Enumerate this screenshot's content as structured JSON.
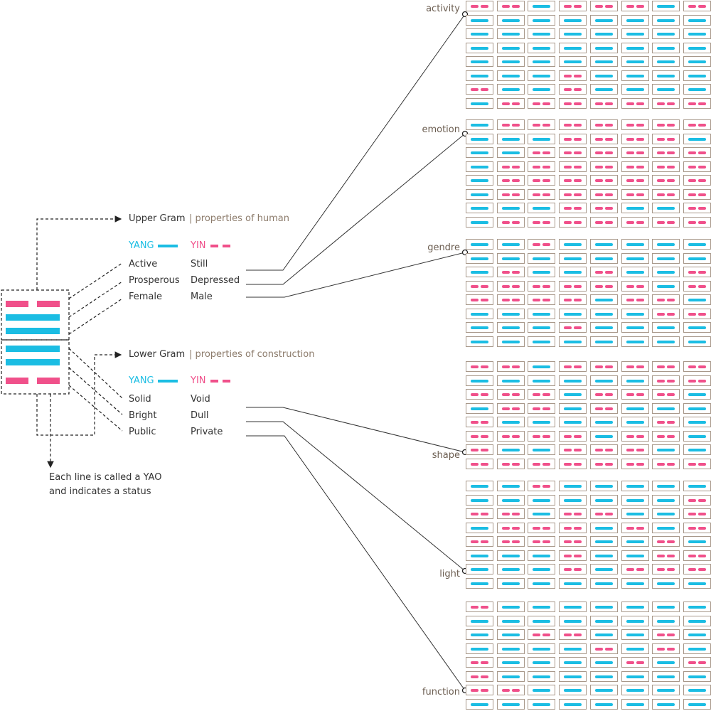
{
  "colors": {
    "yang": "#1bbde3",
    "yin": "#f0508a",
    "line": "#333333"
  },
  "hexagram": [
    "yin",
    "yang",
    "yang",
    "yang",
    "yang",
    "yin"
  ],
  "upper": {
    "title": "Upper Gram",
    "subtitle": "| properties of human",
    "yang_label": "YANG",
    "yin_label": "YIN",
    "pairs": [
      {
        "yang": "Active",
        "yin": "Still"
      },
      {
        "yang": "Prosperous",
        "yin": "Depressed"
      },
      {
        "yang": "Female",
        "yin": "Male"
      }
    ]
  },
  "lower": {
    "title": "Lower Gram",
    "subtitle": "| properties of construction",
    "yang_label": "YANG",
    "yin_label": "YIN",
    "pairs": [
      {
        "yang": "Solid",
        "yin": "Void"
      },
      {
        "yang": "Bright",
        "yin": "Dull"
      },
      {
        "yang": "Public",
        "yin": "Private"
      }
    ]
  },
  "note": {
    "line1": "Each line is called a YAO",
    "line2": "and indicates a status"
  },
  "grids": [
    {
      "label": "activity",
      "rows": [
        "00100010",
        "11111111",
        "11111111",
        "11111111",
        "11111111",
        "11101111",
        "01101111",
        "10000000"
      ]
    },
    {
      "label": "emotion",
      "rows": [
        "10000000",
        "11100001",
        "11000000",
        "10000000",
        "10000000",
        "10000000",
        "11100110",
        "10000000"
      ]
    },
    {
      "label": "gendre",
      "rows": [
        "11011111",
        "11111111",
        "10110110",
        "00000010",
        "00001001",
        "11111100",
        "11101111",
        "11111111"
      ]
    },
    {
      "label": "shape",
      "rows": [
        "00100000",
        "11111100",
        "00010001",
        "10010111",
        "01111101",
        "00001001",
        "01100011",
        "00000000"
      ]
    },
    {
      "label": "light",
      "rows": [
        "11011111",
        "11111110",
        "00100110",
        "10001010",
        "00001101",
        "11101100",
        "11101000",
        "11111111"
      ]
    },
    {
      "label": "function",
      "rows": [
        "01111111",
        "11111111",
        "11001101",
        "11110101",
        "01111010",
        "01111111",
        "00111111",
        "11111111"
      ]
    }
  ]
}
